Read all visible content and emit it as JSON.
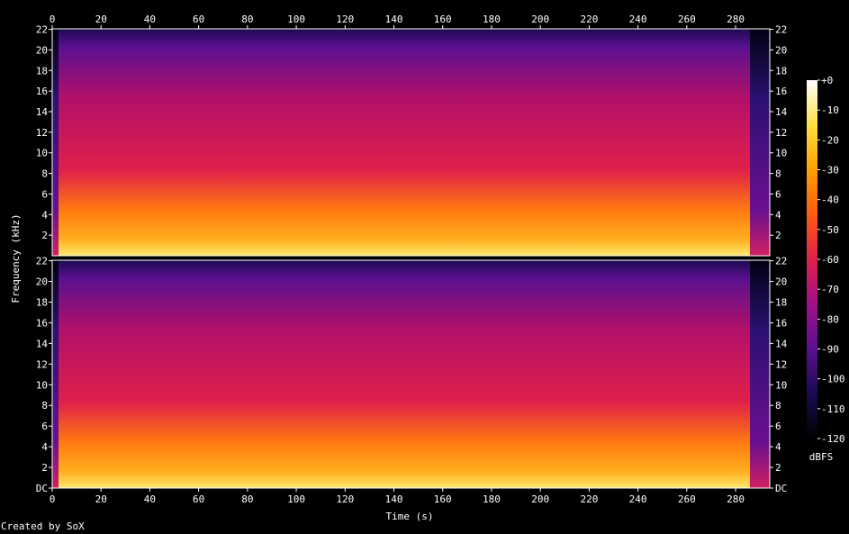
{
  "chart_data": {
    "type": "heatmap",
    "description_kind": "spectrogram",
    "xlabel": "Time (s)",
    "ylabel": "Frequency (kHz)",
    "x_ticks": [
      0,
      20,
      40,
      60,
      80,
      100,
      120,
      140,
      160,
      180,
      200,
      220,
      240,
      260,
      280
    ],
    "xlim": [
      0,
      294
    ],
    "ylim": [
      0,
      22.05
    ],
    "channels": [
      {
        "name": "",
        "y_ticks": [
          "22",
          "20",
          "18",
          "16",
          "14",
          "12",
          "10",
          "8",
          "6",
          "4",
          "2"
        ]
      },
      {
        "name": "",
        "y_ticks": [
          "22",
          "20",
          "18",
          "16",
          "14",
          "12",
          "10",
          "8",
          "6",
          "4",
          "2",
          "DC"
        ]
      }
    ],
    "colorbar": {
      "label": "dBFS",
      "ticks": [
        "+0",
        "-10",
        "-20",
        "-30",
        "-40",
        "-50",
        "-60",
        "-70",
        "-80",
        "-90",
        "-100",
        "-110",
        "-120"
      ],
      "range": [
        -120,
        0
      ],
      "colors": [
        "#000000",
        "#1a0a50",
        "#5a1090",
        "#a0108a",
        "#e0204a",
        "#ff5a10",
        "#ffa000",
        "#ffe040",
        "#ffffff"
      ]
    }
  },
  "credit": "Created by SoX"
}
